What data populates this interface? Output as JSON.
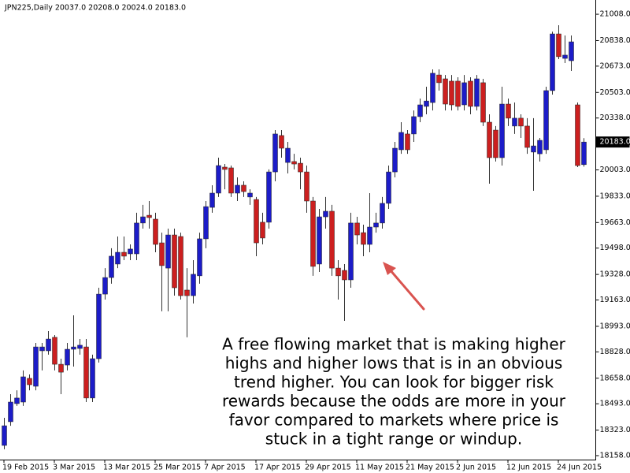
{
  "chart_data": {
    "type": "candlestick",
    "title": "JPN225,Daily  20037.0 20208.0 20024.0 20183.0",
    "categories": [
      "19 Feb 2015",
      null,
      null,
      null,
      null,
      null,
      null,
      null,
      "3 Mar 2015",
      null,
      null,
      null,
      null,
      null,
      null,
      null,
      "13 Mar 2015",
      null,
      null,
      null,
      null,
      null,
      null,
      null,
      "25 Mar 2015",
      null,
      null,
      null,
      null,
      null,
      null,
      null,
      "7 Apr 2015",
      null,
      null,
      null,
      null,
      null,
      null,
      null,
      "17 Apr 2015",
      null,
      null,
      null,
      null,
      null,
      null,
      null,
      "29 Apr 2015",
      null,
      null,
      null,
      null,
      null,
      null,
      null,
      "11 May 2015",
      null,
      null,
      null,
      null,
      null,
      null,
      null,
      "21 May 2015",
      null,
      null,
      null,
      null,
      null,
      null,
      null,
      "2 Jun 2015",
      null,
      null,
      null,
      null,
      null,
      null,
      null,
      "12 Jun 2015",
      null,
      null,
      null,
      null,
      null,
      null,
      null,
      "24 Jun 2015",
      null,
      null,
      null,
      null
    ],
    "open": [
      18224,
      18377,
      18494,
      18504,
      18657,
      18606,
      18835,
      18835,
      18922,
      18748,
      18743,
      18845,
      18850,
      18860,
      18530,
      18784,
      19201,
      19308,
      19395,
      19471,
      19461,
      19461,
      19660,
      19710,
      19685,
      19532,
      19369,
      19583,
      19573,
      19227,
      19191,
      19319,
      19558,
      19761,
      19853,
      20021,
      20016,
      19853,
      19904,
      19828,
      19812,
      19665,
      19665,
      19990,
      20225,
      20051,
      20057,
      20046,
      19990,
      19802,
      19395,
      19700,
      19736,
      19369,
      19354,
      19293,
      19660,
      19598,
      19522,
      19634,
      19660,
      19787,
      19990,
      20133,
      20235,
      20235,
      20347,
      20413,
      20438,
      20616,
      20591,
      20576,
      20576,
      20423,
      20576,
      20413,
      20566,
      20311,
      20260,
      20082,
      20428,
      20286,
      20337,
      20286,
      20118,
      20107,
      20133,
      20515,
      20881,
      20723,
      20708,
      20423,
      20037
    ],
    "high": [
      18402,
      18555,
      18580,
      18708,
      18682,
      18886,
      18886,
      18962,
      18937,
      18784,
      18886,
      19064,
      18911,
      18911,
      18810,
      19242,
      19369,
      19497,
      19573,
      19573,
      19522,
      19726,
      19777,
      19802,
      19726,
      19598,
      19624,
      19624,
      19598,
      19369,
      19420,
      19598,
      19802,
      19904,
      20082,
      20041,
      20031,
      19955,
      19929,
      19878,
      19828,
      19726,
      20006,
      20260,
      20260,
      20184,
      20107,
      20082,
      20031,
      19828,
      19751,
      19828,
      19777,
      19420,
      19395,
      19726,
      19700,
      19649,
      19853,
      19726,
      19828,
      20031,
      20184,
      20311,
      20260,
      20387,
      20464,
      20540,
      20652,
      20652,
      20616,
      20616,
      20601,
      20616,
      20601,
      20616,
      20591,
      20362,
      20286,
      20540,
      20464,
      20438,
      20362,
      20337,
      20337,
      20209,
      20540,
      20896,
      20937,
      20871,
      20871,
      20438,
      20208
    ],
    "low": [
      18199,
      18351,
      18479,
      18479,
      18580,
      18580,
      18708,
      18810,
      18708,
      18555,
      18708,
      18733,
      18810,
      18504,
      18504,
      18759,
      19166,
      19268,
      19369,
      19420,
      19420,
      19420,
      19624,
      19624,
      19471,
      19090,
      19090,
      19191,
      19166,
      18922,
      19140,
      19268,
      19497,
      19726,
      19828,
      19878,
      19828,
      19802,
      19828,
      19777,
      19446,
      19522,
      19624,
      19929,
      20082,
      19980,
      20006,
      19878,
      19726,
      19319,
      19344,
      19624,
      19319,
      19166,
      19028,
      19242,
      19522,
      19446,
      19471,
      19598,
      19624,
      19751,
      19955,
      20107,
      20107,
      20184,
      20311,
      20362,
      20387,
      20515,
      20387,
      20387,
      20387,
      20387,
      20362,
      20387,
      20286,
      19914,
      20057,
      20031,
      20286,
      20235,
      20209,
      20107,
      19868,
      20057,
      20107,
      20489,
      20718,
      20693,
      20642,
      20021,
      20024
    ],
    "close": [
      18351,
      18504,
      18530,
      18667,
      18616,
      18860,
      18860,
      18911,
      18748,
      18697,
      18845,
      18860,
      18871,
      18530,
      18784,
      19201,
      19308,
      19446,
      19471,
      19446,
      19492,
      19660,
      19700,
      19695,
      19522,
      19385,
      19583,
      19242,
      19191,
      19191,
      19329,
      19558,
      19766,
      19853,
      20031,
      20006,
      19853,
      19904,
      19863,
      19853,
      19532,
      19563,
      19990,
      20235,
      20143,
      20143,
      20041,
      19990,
      19802,
      19380,
      19700,
      19736,
      19369,
      19319,
      19293,
      19660,
      19583,
      19522,
      19634,
      19660,
      19787,
      19990,
      20143,
      20245,
      20133,
      20347,
      20423,
      20448,
      20627,
      20566,
      20428,
      20423,
      20413,
      20566,
      20413,
      20591,
      20311,
      20082,
      20082,
      20428,
      20337,
      20337,
      20286,
      20148,
      20158,
      20194,
      20515,
      20881,
      20734,
      20744,
      20830,
      20031,
      20183
    ],
    "up_color": "#1c1cc8",
    "down_color": "#cc1f1f",
    "ylim": [
      18135,
      21100
    ],
    "yticks": [
      {
        "value": 18158,
        "label": "18158.0"
      },
      {
        "value": 18323,
        "label": "18323.0"
      },
      {
        "value": 18493,
        "label": "18493.0"
      },
      {
        "value": 18658,
        "label": "18658.0"
      },
      {
        "value": 18828,
        "label": "18828.0"
      },
      {
        "value": 18993,
        "label": "18993.0"
      },
      {
        "value": 19163,
        "label": "19163.0"
      },
      {
        "value": 19328,
        "label": "19328.0"
      },
      {
        "value": 19498,
        "label": "19498.0"
      },
      {
        "value": 19663,
        "label": "19663.0"
      },
      {
        "value": 19833,
        "label": "19833.0"
      },
      {
        "value": 20003,
        "label": "20003.0"
      },
      {
        "value": 20168,
        "label": "20168.0"
      },
      {
        "value": 20338,
        "label": "20338.0"
      },
      {
        "value": 20503,
        "label": "20503.0"
      },
      {
        "value": 20673,
        "label": "20673.0"
      },
      {
        "value": 20838,
        "label": "20838.0"
      },
      {
        "value": 21008,
        "label": "21008.0"
      }
    ],
    "current_price": {
      "value": 20183,
      "label": "20183.0"
    },
    "annotation": [
      "A free flowing market that is making higher",
      "highs and higher lows that is in an obvious",
      "trend higher. You can look for bigger risk",
      "rewards because the odds are more in your",
      "favor compared to markets where price is",
      "stuck in a tight range or windup."
    ]
  }
}
